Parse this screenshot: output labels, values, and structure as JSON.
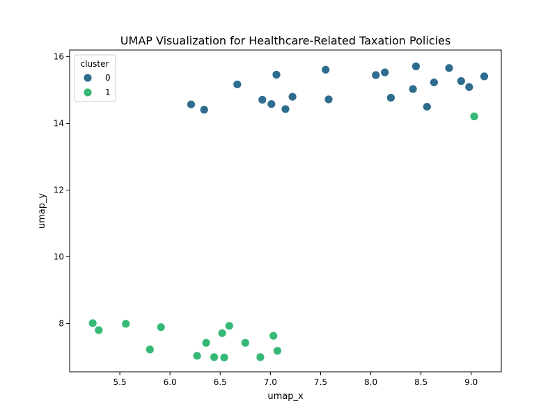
{
  "chart_data": {
    "type": "scatter",
    "title": "UMAP Visualization for Healthcare-Related Taxation Policies",
    "xlabel": "umap_x",
    "ylabel": "umap_y",
    "xlim": [
      5.0,
      9.3
    ],
    "ylim": [
      6.55,
      16.2
    ],
    "xticks": [
      5.5,
      6.0,
      6.5,
      7.0,
      7.5,
      8.0,
      8.5,
      9.0
    ],
    "xtick_labels": [
      "5.5",
      "6.0",
      "6.5",
      "7.0",
      "7.5",
      "8.0",
      "8.5",
      "9.0"
    ],
    "yticks": [
      8,
      10,
      12,
      14,
      16
    ],
    "ytick_labels": [
      "8",
      "10",
      "12",
      "14",
      "16"
    ],
    "grid": false,
    "legend": {
      "title": "cluster",
      "placement": "top-left",
      "entries": [
        "0",
        "1"
      ]
    },
    "series": [
      {
        "name": "0",
        "color": "#2e6d8e",
        "points": [
          [
            6.21,
            14.57
          ],
          [
            6.34,
            14.41
          ],
          [
            6.67,
            15.17
          ],
          [
            6.92,
            14.71
          ],
          [
            7.01,
            14.58
          ],
          [
            7.06,
            15.46
          ],
          [
            7.15,
            14.43
          ],
          [
            7.22,
            14.8
          ],
          [
            7.55,
            15.61
          ],
          [
            7.58,
            14.72
          ],
          [
            8.05,
            15.45
          ],
          [
            8.14,
            15.53
          ],
          [
            8.2,
            14.77
          ],
          [
            8.42,
            15.03
          ],
          [
            8.45,
            15.71
          ],
          [
            8.56,
            14.5
          ],
          [
            8.63,
            15.23
          ],
          [
            8.78,
            15.66
          ],
          [
            8.9,
            15.27
          ],
          [
            8.98,
            15.09
          ],
          [
            9.13,
            15.41
          ]
        ]
      },
      {
        "name": "1",
        "color": "#36b976",
        "points": [
          [
            5.23,
            8.01
          ],
          [
            5.29,
            7.8
          ],
          [
            5.56,
            7.99
          ],
          [
            5.8,
            7.22
          ],
          [
            5.91,
            7.89
          ],
          [
            6.27,
            7.03
          ],
          [
            6.36,
            7.42
          ],
          [
            6.44,
            6.99
          ],
          [
            6.52,
            7.71
          ],
          [
            6.54,
            6.98
          ],
          [
            6.59,
            7.93
          ],
          [
            6.75,
            7.42
          ],
          [
            6.9,
            6.99
          ],
          [
            7.03,
            7.63
          ],
          [
            7.07,
            7.18
          ],
          [
            9.03,
            14.21
          ]
        ]
      }
    ]
  }
}
